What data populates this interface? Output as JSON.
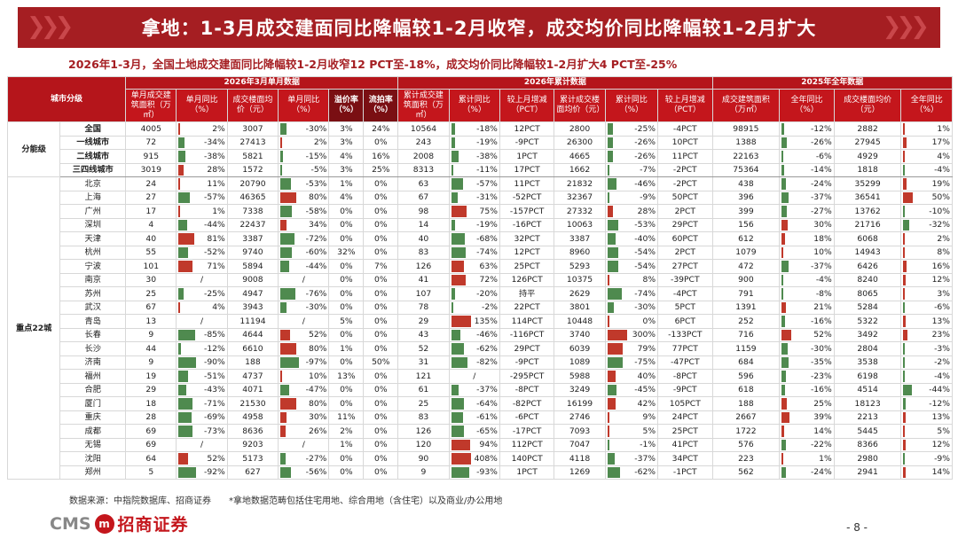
{
  "title": "拿地：1-3月成交建面同比降幅较1-2月收窄，成交均价同比降幅较1-2月扩大",
  "subtitle": "2026年1-3月，全国土地成交建面同比降幅较1-2月收窄12 PCT至-18%，成交均价同比降幅较1-2月扩大4 PCT至-25%",
  "header": {
    "city_level": "城市分级",
    "groups": [
      "2026年3月单月数据",
      "2026年累计数据",
      "2025年全年数据"
    ],
    "cols": [
      "单月成交建筑面积（万㎡）",
      "单月同比（%）",
      "成交楼面均价（元）",
      "单月同比（%）",
      "溢价率（%）",
      "流拍率（%）",
      "累计成交建筑面积（万㎡）",
      "累计同比（%）",
      "较上月增减（PCT）",
      "累计成交楼面均价（元）",
      "累计同比（%）",
      "较上月增减（PCT）",
      "成交建筑面积（万㎡）",
      "全年同比（%）",
      "成交楼面均价（元）",
      "全年同比（%）"
    ]
  },
  "section_labels": [
    "分能级",
    "重点22城"
  ],
  "colors": {
    "accent": "#a51e22",
    "neg": "#4f8a4f",
    "pos": "#c0392b"
  },
  "rows": [
    {
      "name": "全国",
      "sec": 0,
      "v": [
        "4005",
        "2%",
        "3007",
        "-30%",
        "3%",
        "24%",
        "10564",
        "-18%",
        "12PCT",
        "2800",
        "-25%",
        "-4PCT",
        "98915",
        "-12%",
        "2882",
        "1%"
      ]
    },
    {
      "name": "一线城市",
      "sec": 0,
      "v": [
        "72",
        "-34%",
        "27413",
        "2%",
        "3%",
        "0%",
        "243",
        "-19%",
        "-9PCT",
        "26300",
        "-26%",
        "10PCT",
        "1388",
        "-26%",
        "27945",
        "17%"
      ]
    },
    {
      "name": "二线城市",
      "sec": 0,
      "v": [
        "915",
        "-38%",
        "5821",
        "-15%",
        "4%",
        "16%",
        "2008",
        "-38%",
        "1PCT",
        "4665",
        "-26%",
        "11PCT",
        "22163",
        "-6%",
        "4929",
        "4%"
      ]
    },
    {
      "name": "三四线城市",
      "sec": 0,
      "v": [
        "3019",
        "28%",
        "1572",
        "-5%",
        "3%",
        "25%",
        "8313",
        "-11%",
        "17PCT",
        "1662",
        "-7%",
        "-2PCT",
        "75364",
        "-14%",
        "1818",
        "-4%"
      ]
    },
    {
      "name": "北京",
      "sec": 1,
      "v": [
        "24",
        "11%",
        "20790",
        "-53%",
        "1%",
        "0%",
        "63",
        "-57%",
        "11PCT",
        "21832",
        "-46%",
        "-2PCT",
        "438",
        "-24%",
        "35299",
        "19%"
      ]
    },
    {
      "name": "上海",
      "sec": 1,
      "v": [
        "27",
        "-57%",
        "46365",
        "80%",
        "4%",
        "0%",
        "67",
        "-31%",
        "-52PCT",
        "32367",
        "-9%",
        "50PCT",
        "396",
        "-37%",
        "36541",
        "50%"
      ]
    },
    {
      "name": "广州",
      "sec": 1,
      "v": [
        "17",
        "1%",
        "7338",
        "-58%",
        "0%",
        "0%",
        "98",
        "75%",
        "-157PCT",
        "27332",
        "28%",
        "2PCT",
        "399",
        "-27%",
        "13762",
        "-10%"
      ]
    },
    {
      "name": "深圳",
      "sec": 1,
      "v": [
        "4",
        "-44%",
        "22437",
        "34%",
        "0%",
        "0%",
        "14",
        "-19%",
        "-16PCT",
        "10063",
        "-53%",
        "29PCT",
        "156",
        "30%",
        "21716",
        "-32%"
      ]
    },
    {
      "name": "天津",
      "sec": 1,
      "v": [
        "40",
        "81%",
        "3387",
        "-72%",
        "0%",
        "0%",
        "40",
        "-68%",
        "32PCT",
        "3387",
        "-40%",
        "60PCT",
        "612",
        "18%",
        "6068",
        "2%"
      ]
    },
    {
      "name": "杭州",
      "sec": 1,
      "v": [
        "55",
        "-52%",
        "9740",
        "-60%",
        "32%",
        "0%",
        "83",
        "-74%",
        "12PCT",
        "8960",
        "-54%",
        "2PCT",
        "1079",
        "10%",
        "14943",
        "8%"
      ]
    },
    {
      "name": "宁波",
      "sec": 1,
      "v": [
        "101",
        "71%",
        "5894",
        "-44%",
        "0%",
        "7%",
        "126",
        "63%",
        "25PCT",
        "5293",
        "-54%",
        "27PCT",
        "472",
        "-37%",
        "6426",
        "16%"
      ]
    },
    {
      "name": "南京",
      "sec": 1,
      "v": [
        "30",
        "/",
        "9008",
        "/",
        "0%",
        "0%",
        "41",
        "72%",
        "126PCT",
        "10375",
        "8%",
        "-39PCT",
        "900",
        "-4%",
        "8240",
        "12%"
      ]
    },
    {
      "name": "苏州",
      "sec": 1,
      "v": [
        "25",
        "-25%",
        "4947",
        "-76%",
        "0%",
        "0%",
        "107",
        "-20%",
        "持平",
        "2629",
        "-74%",
        "-4PCT",
        "791",
        "-8%",
        "8065",
        "3%"
      ]
    },
    {
      "name": "武汉",
      "sec": 1,
      "v": [
        "67",
        "4%",
        "3943",
        "-30%",
        "0%",
        "0%",
        "78",
        "-2%",
        "22PCT",
        "3801",
        "-30%",
        "5PCT",
        "1391",
        "21%",
        "5284",
        "-6%"
      ]
    },
    {
      "name": "青岛",
      "sec": 1,
      "v": [
        "13",
        "/",
        "11194",
        "/",
        "5%",
        "0%",
        "29",
        "135%",
        "114PCT",
        "10448",
        "0%",
        "6PCT",
        "252",
        "-16%",
        "5322",
        "13%"
      ]
    },
    {
      "name": "长春",
      "sec": 1,
      "v": [
        "9",
        "-85%",
        "4644",
        "52%",
        "0%",
        "0%",
        "43",
        "-46%",
        "-116PCT",
        "3740",
        "300%",
        "-133PCT",
        "716",
        "52%",
        "3492",
        "23%"
      ]
    },
    {
      "name": "长沙",
      "sec": 1,
      "v": [
        "44",
        "-12%",
        "6610",
        "80%",
        "1%",
        "0%",
        "52",
        "-62%",
        "29PCT",
        "6039",
        "79%",
        "77PCT",
        "1159",
        "-30%",
        "2804",
        "-3%"
      ]
    },
    {
      "name": "济南",
      "sec": 1,
      "v": [
        "9",
        "-90%",
        "188",
        "-97%",
        "0%",
        "50%",
        "31",
        "-82%",
        "-9PCT",
        "1089",
        "-75%",
        "-47PCT",
        "684",
        "-35%",
        "3538",
        "-2%"
      ]
    },
    {
      "name": "福州",
      "sec": 1,
      "v": [
        "19",
        "-51%",
        "4737",
        "10%",
        "13%",
        "0%",
        "121",
        "/",
        "-295PCT",
        "5988",
        "40%",
        "-8PCT",
        "596",
        "-23%",
        "6198",
        "-4%"
      ]
    },
    {
      "name": "合肥",
      "sec": 1,
      "v": [
        "29",
        "-43%",
        "4071",
        "-47%",
        "0%",
        "0%",
        "61",
        "-37%",
        "-8PCT",
        "3249",
        "-45%",
        "-9PCT",
        "618",
        "-16%",
        "4514",
        "-44%"
      ]
    },
    {
      "name": "厦门",
      "sec": 1,
      "v": [
        "18",
        "-71%",
        "21530",
        "80%",
        "0%",
        "0%",
        "25",
        "-64%",
        "-82PCT",
        "16199",
        "42%",
        "105PCT",
        "188",
        "25%",
        "18123",
        "-12%"
      ]
    },
    {
      "name": "重庆",
      "sec": 1,
      "v": [
        "28",
        "-69%",
        "4958",
        "30%",
        "11%",
        "0%",
        "83",
        "-61%",
        "-6PCT",
        "2746",
        "9%",
        "24PCT",
        "2667",
        "39%",
        "2213",
        "13%"
      ]
    },
    {
      "name": "成都",
      "sec": 1,
      "v": [
        "69",
        "-73%",
        "8636",
        "26%",
        "2%",
        "0%",
        "126",
        "-65%",
        "-17PCT",
        "7093",
        "5%",
        "25PCT",
        "1722",
        "14%",
        "5445",
        "5%"
      ]
    },
    {
      "name": "无锡",
      "sec": 1,
      "v": [
        "69",
        "/",
        "9203",
        "/",
        "1%",
        "0%",
        "120",
        "94%",
        "112PCT",
        "7047",
        "-1%",
        "41PCT",
        "576",
        "-22%",
        "8366",
        "12%"
      ]
    },
    {
      "name": "沈阳",
      "sec": 1,
      "v": [
        "64",
        "52%",
        "5173",
        "-27%",
        "0%",
        "0%",
        "90",
        "408%",
        "140PCT",
        "4118",
        "-37%",
        "34PCT",
        "223",
        "1%",
        "2980",
        "-9%"
      ]
    },
    {
      "name": "郑州",
      "sec": 1,
      "v": [
        "5",
        "-92%",
        "627",
        "-56%",
        "0%",
        "0%",
        "9",
        "-93%",
        "1PCT",
        "1269",
        "-62%",
        "-1PCT",
        "562",
        "-24%",
        "2941",
        "14%"
      ]
    }
  ],
  "footnote": "数据来源：中指院数据库、招商证券　　*拿地数据范畴包括住宅用地、综合用地（含住宅）以及商业/办公用地",
  "logo": {
    "latin": "CMS",
    "seal": "m",
    "cn": "招商证券"
  },
  "page_number": "- 8 -"
}
